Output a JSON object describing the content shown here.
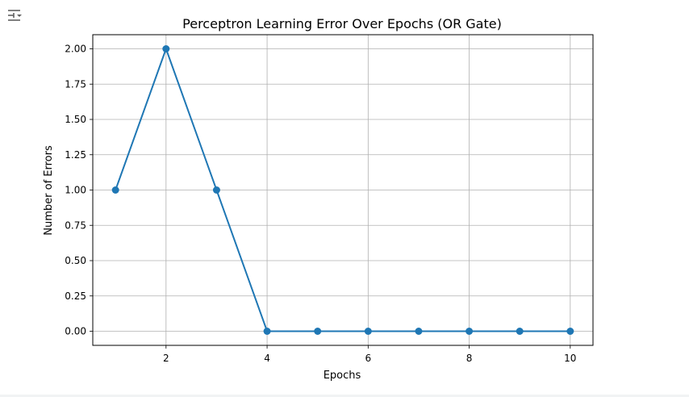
{
  "toolbar": {
    "output_icon": "output-settings-icon"
  },
  "chart_data": {
    "type": "line",
    "title": "Perceptron Learning Error Over Epochs (OR Gate)",
    "xlabel": "Epochs",
    "ylabel": "Number of Errors",
    "x": [
      1,
      2,
      3,
      4,
      5,
      6,
      7,
      8,
      9,
      10
    ],
    "series": [
      {
        "values": [
          1,
          2,
          1,
          0,
          0,
          0,
          0,
          0,
          0,
          0
        ]
      }
    ],
    "xlim": [
      0.55,
      10.45
    ],
    "ylim": [
      -0.1,
      2.1
    ],
    "x_ticks": [
      2,
      4,
      6,
      8,
      10
    ],
    "x_tick_labels": [
      "2",
      "4",
      "6",
      "8",
      "10"
    ],
    "y_ticks": [
      0,
      0.25,
      0.5,
      0.75,
      1,
      1.25,
      1.5,
      1.75,
      2
    ],
    "y_tick_labels": [
      "0.00",
      "0.25",
      "0.50",
      "0.75",
      "1.00",
      "1.25",
      "1.50",
      "1.75",
      "2.00"
    ],
    "grid": true,
    "marker": "circle",
    "line_color": "#1f77b4",
    "grid_color": "#b0b0b0",
    "axis_color": "#000000"
  }
}
